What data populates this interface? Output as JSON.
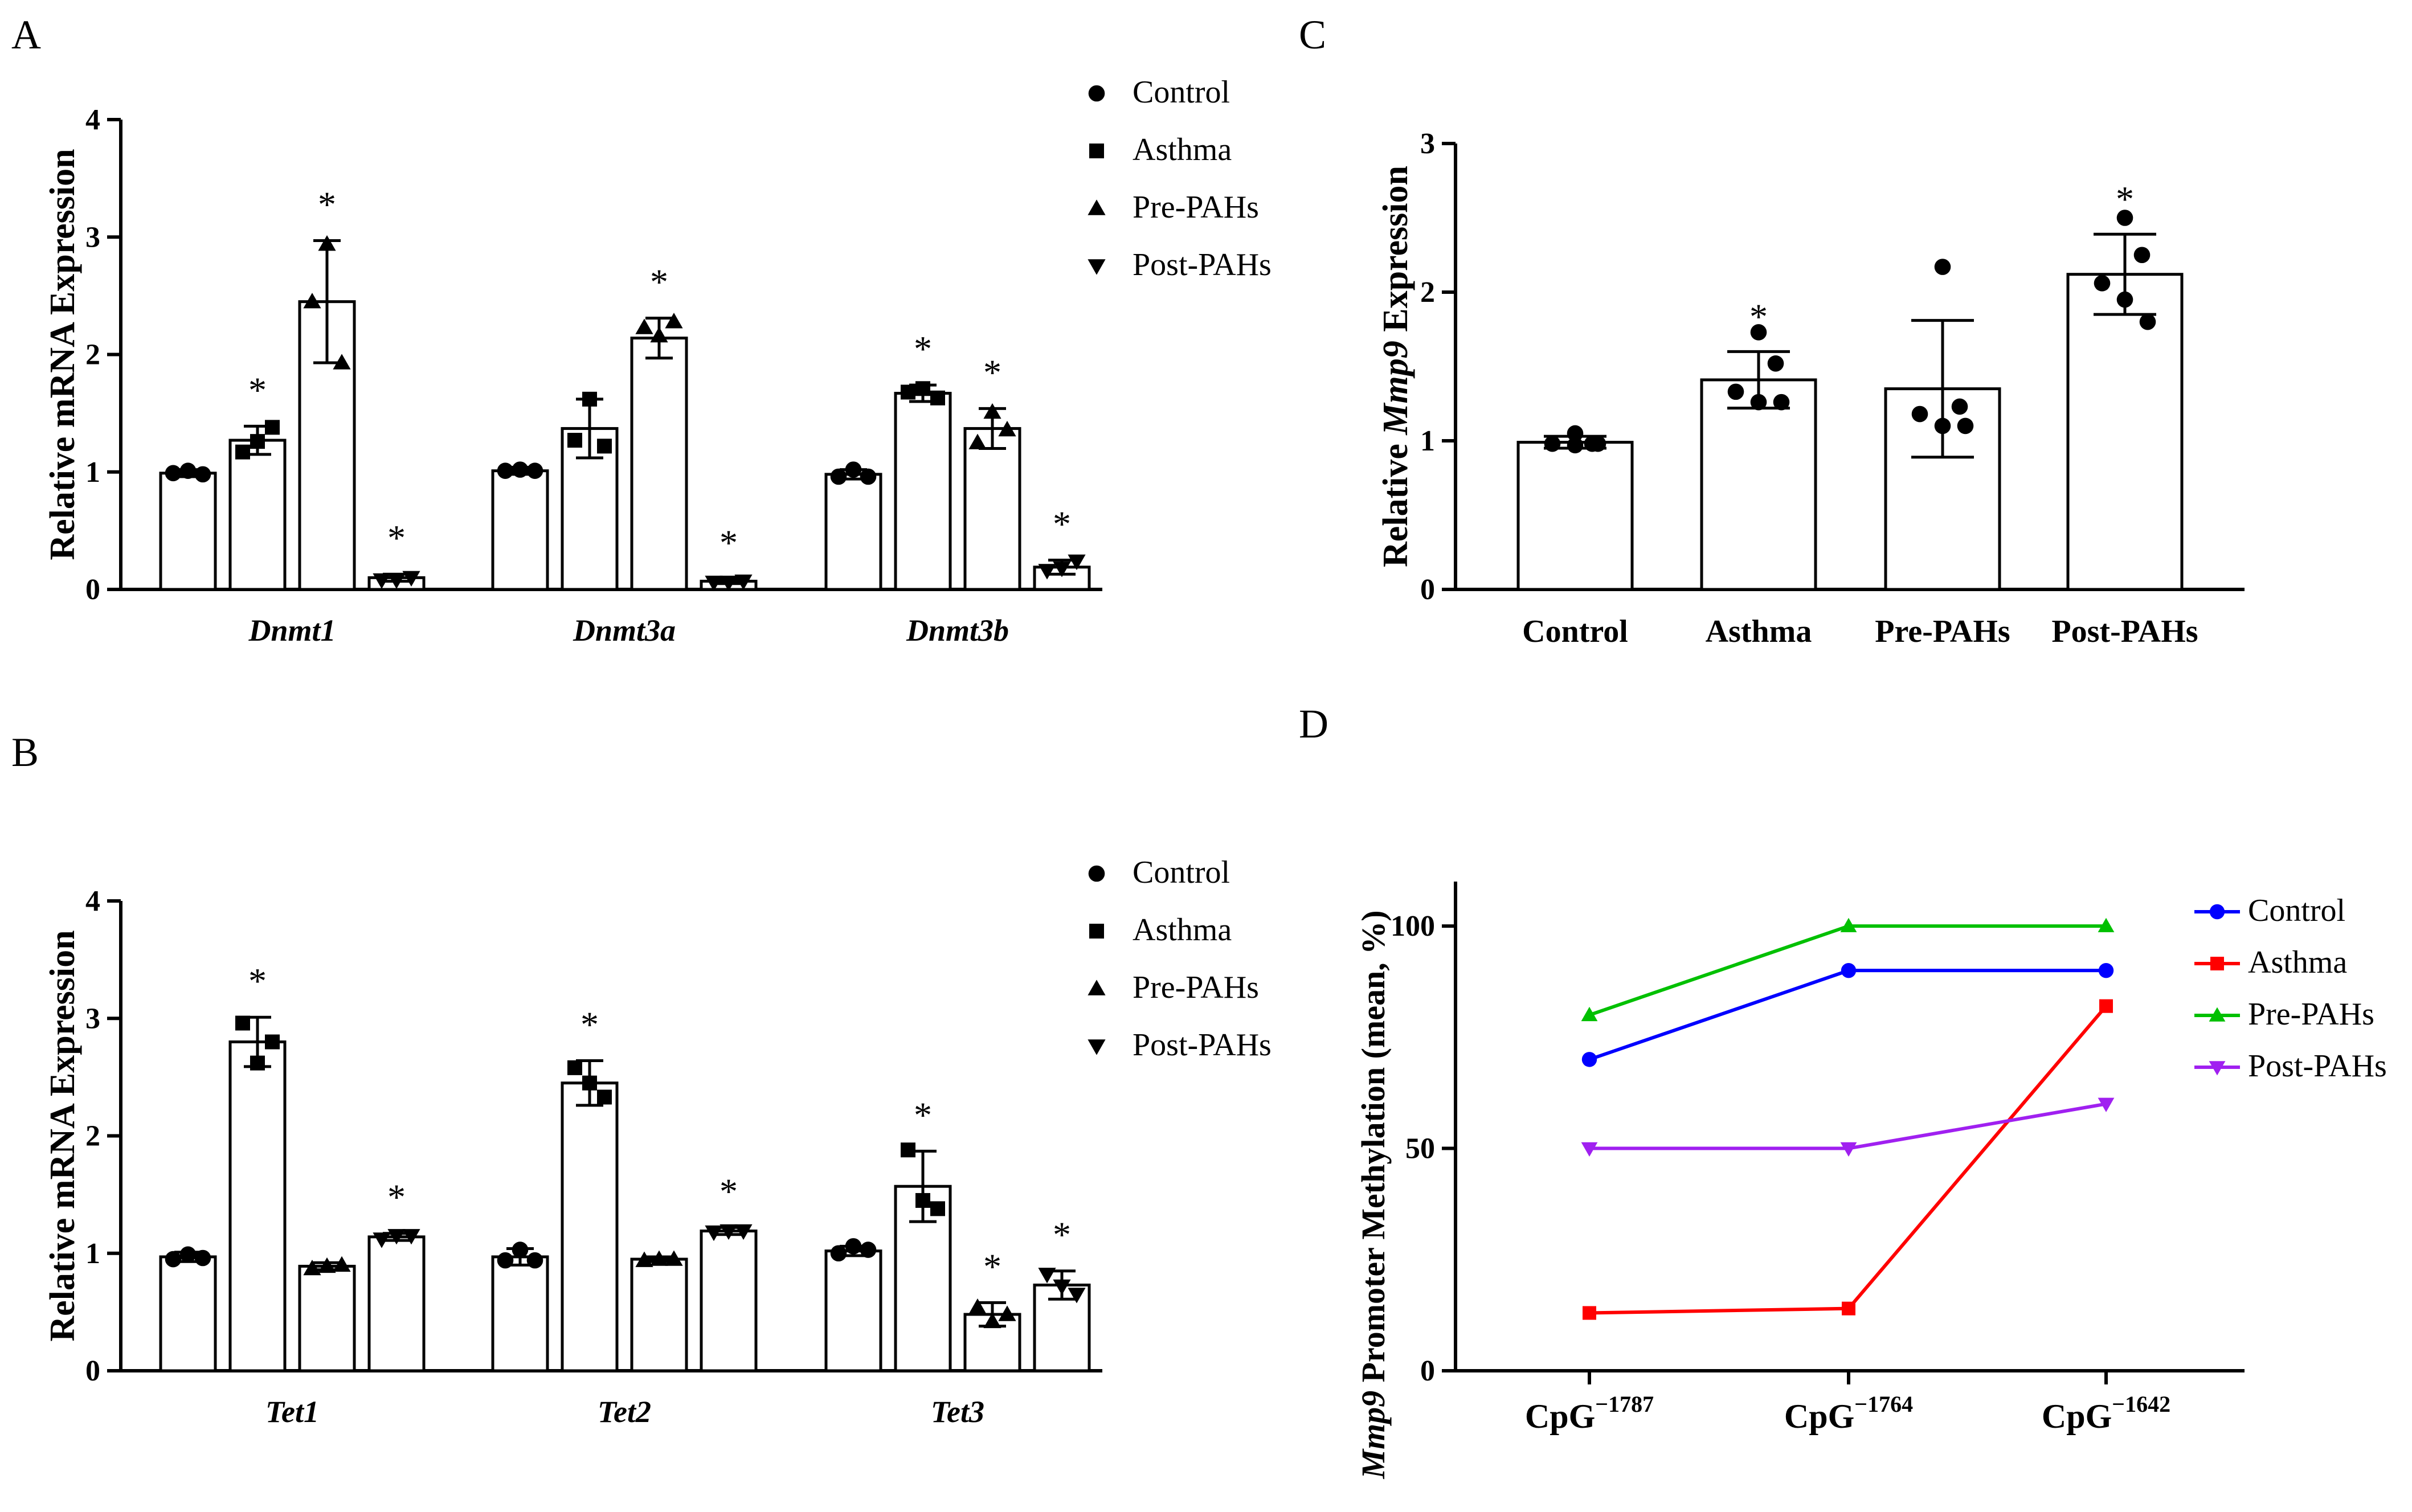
{
  "chart_data": [
    {
      "panel": "A",
      "type": "bar",
      "ylabel": "Relative mRNA Expression",
      "ylim": [
        0,
        4
      ],
      "yticks": [
        0,
        1,
        2,
        3,
        4
      ],
      "groups": [
        "Dnmt1",
        "Dnmt3a",
        "Dnmt3b"
      ],
      "series": [
        {
          "name": "Control",
          "values": [
            0.99,
            1.01,
            0.98
          ],
          "sd": [
            0.03,
            0.03,
            0.04
          ]
        },
        {
          "name": "Asthma",
          "values": [
            1.27,
            1.37,
            1.67
          ],
          "sd": [
            0.12,
            0.25,
            0.07
          ]
        },
        {
          "name": "Pre-PAHs",
          "values": [
            2.45,
            2.14,
            1.37
          ],
          "sd": [
            0.52,
            0.17,
            0.17
          ]
        },
        {
          "name": "Post-PAHs",
          "values": [
            0.1,
            0.07,
            0.19
          ],
          "sd": [
            0.03,
            0.02,
            0.06
          ]
        }
      ],
      "points": [
        [
          [
            0.99,
            1.01,
            0.98
          ],
          [
            1.17,
            1.26,
            1.38
          ],
          [
            2.45,
            2.94,
            1.93
          ],
          [
            0.08,
            0.08,
            0.1
          ]
        ],
        [
          [
            1.01,
            1.02,
            1.01
          ],
          [
            1.27,
            1.62,
            1.22
          ],
          [
            2.23,
            2.16,
            2.28
          ],
          [
            0.06,
            0.06,
            0.07
          ]
        ],
        [
          [
            0.96,
            1.02,
            0.96
          ],
          [
            1.68,
            1.71,
            1.63
          ],
          [
            1.25,
            1.51,
            1.36
          ],
          [
            0.16,
            0.18,
            0.24
          ]
        ]
      ],
      "significance": [
        [
          "",
          "*",
          "*",
          "*"
        ],
        [
          "",
          "",
          "*",
          "*"
        ],
        [
          "",
          "*",
          "*",
          "*"
        ]
      ],
      "legend": [
        "Control",
        "Asthma",
        "Pre-PAHs",
        "Post-PAHs"
      ]
    },
    {
      "panel": "B",
      "type": "bar",
      "ylabel": "Relative mRNA Expression",
      "ylim": [
        0,
        4
      ],
      "yticks": [
        0,
        1,
        2,
        3,
        4
      ],
      "groups": [
        "Tet1",
        "Tet2",
        "Tet3"
      ],
      "series": [
        {
          "name": "Control",
          "values": [
            0.97,
            0.97,
            1.02
          ],
          "sd": [
            0.04,
            0.07,
            0.04
          ]
        },
        {
          "name": "Asthma",
          "values": [
            2.8,
            2.45,
            1.57
          ],
          "sd": [
            0.21,
            0.19,
            0.3
          ]
        },
        {
          "name": "Pre-PAHs",
          "values": [
            0.89,
            0.95,
            0.48
          ],
          "sd": [
            0.03,
            0.02,
            0.1
          ]
        },
        {
          "name": "Post-PAHs",
          "values": [
            1.14,
            1.19,
            0.73
          ],
          "sd": [
            0.03,
            0.03,
            0.12
          ]
        }
      ],
      "points": [
        [
          [
            0.95,
            0.99,
            0.96
          ],
          [
            2.96,
            2.62,
            2.8
          ],
          [
            0.87,
            0.89,
            0.9
          ],
          [
            1.12,
            1.15,
            1.15
          ]
        ],
        [
          [
            0.94,
            1.03,
            0.94
          ],
          [
            2.58,
            2.45,
            2.33
          ],
          [
            0.94,
            0.95,
            0.95
          ],
          [
            1.18,
            1.19,
            1.19
          ]
        ],
        [
          [
            1.0,
            1.06,
            1.03
          ],
          [
            1.88,
            1.45,
            1.38
          ],
          [
            0.54,
            0.42,
            0.48
          ],
          [
            0.82,
            0.72,
            0.65
          ]
        ]
      ],
      "significance": [
        [
          "",
          "*",
          "",
          "*"
        ],
        [
          "",
          "*",
          "",
          "*"
        ],
        [
          "",
          "*",
          "*",
          "*"
        ]
      ],
      "legend": [
        "Control",
        "Asthma",
        "Pre-PAHs",
        "Post-PAHs"
      ]
    },
    {
      "panel": "C",
      "type": "bar",
      "ylabel_prefix": "Relative ",
      "ylabel_gene": "Mmp9",
      "ylabel_suffix": " Expression",
      "ylim": [
        0,
        3
      ],
      "yticks": [
        0,
        1,
        2,
        3
      ],
      "categories": [
        "Control",
        "Asthma",
        "Pre-PAHs",
        "Post-PAHs"
      ],
      "values": [
        0.99,
        1.41,
        1.35,
        2.12
      ],
      "sd": [
        0.04,
        0.19,
        0.46,
        0.27
      ],
      "points": [
        [
          1.05,
          0.98,
          0.98,
          0.97,
          0.98
        ],
        [
          1.73,
          1.52,
          1.33,
          1.26,
          1.26
        ],
        [
          2.17,
          1.23,
          1.18,
          1.1,
          1.1
        ],
        [
          2.5,
          2.25,
          2.06,
          1.95,
          1.8
        ]
      ],
      "significance": [
        "",
        "*",
        "",
        "*"
      ]
    },
    {
      "panel": "D",
      "type": "line",
      "ylabel_gene": "Mmp9",
      "ylabel_suffix": " Promoter Methylation (mean, %)",
      "ylim": [
        0,
        110
      ],
      "yticks": [
        0,
        50,
        100
      ],
      "x_base": "CpG",
      "x_sup": [
        "−1787",
        "−1764",
        "−1642"
      ],
      "series": [
        {
          "name": "Control",
          "values": [
            70,
            90,
            90
          ],
          "color": "#0000ff",
          "marker": "circle"
        },
        {
          "name": "Asthma",
          "values": [
            13,
            14,
            82
          ],
          "color": "#ff0000",
          "marker": "square"
        },
        {
          "name": "Pre-PAHs",
          "values": [
            80,
            100,
            100
          ],
          "color": "#00c000",
          "marker": "triangle-up"
        },
        {
          "name": "Post-PAHs",
          "values": [
            50,
            50,
            60
          ],
          "color": "#a020f0",
          "marker": "triangle-down"
        }
      ]
    }
  ],
  "panel_labels": [
    "A",
    "B",
    "C",
    "D"
  ],
  "significance_symbol": "*"
}
